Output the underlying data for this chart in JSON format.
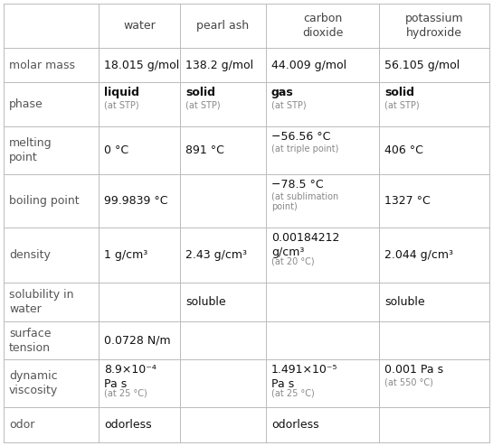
{
  "col_headers": [
    "",
    "water",
    "pearl ash",
    "carbon\ndioxide",
    "potassium\nhydroxide"
  ],
  "rows": [
    {
      "label": "molar mass",
      "cells": [
        [
          [
            "18.015 g/mol",
            9,
            "normal",
            "#111111"
          ],
          [
            "",
            0,
            "normal",
            "#888888"
          ]
        ],
        [
          [
            "138.2 g/mol",
            9,
            "normal",
            "#111111"
          ],
          [
            "",
            0,
            "normal",
            "#888888"
          ]
        ],
        [
          [
            "44.009 g/mol",
            9,
            "normal",
            "#111111"
          ],
          [
            "",
            0,
            "normal",
            "#888888"
          ]
        ],
        [
          [
            "56.105 g/mol",
            9,
            "normal",
            "#111111"
          ],
          [
            "",
            0,
            "normal",
            "#888888"
          ]
        ]
      ]
    },
    {
      "label": "phase",
      "cells": [
        [
          [
            "liquid",
            9,
            "bold",
            "#111111"
          ],
          [
            "(at STP)",
            7,
            "normal",
            "#888888"
          ]
        ],
        [
          [
            "solid",
            9,
            "bold",
            "#111111"
          ],
          [
            "(at STP)",
            7,
            "normal",
            "#888888"
          ]
        ],
        [
          [
            "gas",
            9,
            "bold",
            "#111111"
          ],
          [
            "(at STP)",
            7,
            "normal",
            "#888888"
          ]
        ],
        [
          [
            "solid",
            9,
            "bold",
            "#111111"
          ],
          [
            "(at STP)",
            7,
            "normal",
            "#888888"
          ]
        ]
      ]
    },
    {
      "label": "melting\npoint",
      "cells": [
        [
          [
            "0 °C",
            9,
            "normal",
            "#111111"
          ],
          [
            "",
            0,
            "normal",
            "#888888"
          ]
        ],
        [
          [
            "891 °C",
            9,
            "normal",
            "#111111"
          ],
          [
            "",
            0,
            "normal",
            "#888888"
          ]
        ],
        [
          [
            "−56.56 °C",
            9,
            "normal",
            "#111111"
          ],
          [
            "(at triple point)",
            7,
            "normal",
            "#888888"
          ]
        ],
        [
          [
            "406 °C",
            9,
            "normal",
            "#111111"
          ],
          [
            "",
            0,
            "normal",
            "#888888"
          ]
        ]
      ]
    },
    {
      "label": "boiling point",
      "cells": [
        [
          [
            "99.9839 °C",
            9,
            "normal",
            "#111111"
          ],
          [
            "",
            0,
            "normal",
            "#888888"
          ]
        ],
        [
          [
            "",
            9,
            "normal",
            "#111111"
          ],
          [
            "",
            0,
            "normal",
            "#888888"
          ]
        ],
        [
          [
            "−78.5 °C",
            9,
            "normal",
            "#111111"
          ],
          [
            "(at sublimation\npoint)",
            7,
            "normal",
            "#888888"
          ]
        ],
        [
          [
            "1327 °C",
            9,
            "normal",
            "#111111"
          ],
          [
            "",
            0,
            "normal",
            "#888888"
          ]
        ]
      ]
    },
    {
      "label": "density",
      "cells": [
        [
          [
            "1 g/cm³",
            9,
            "normal",
            "#111111"
          ],
          [
            "",
            0,
            "normal",
            "#888888"
          ]
        ],
        [
          [
            "2.43 g/cm³",
            9,
            "normal",
            "#111111"
          ],
          [
            "",
            0,
            "normal",
            "#888888"
          ]
        ],
        [
          [
            "0.00184212\ng/cm³",
            9,
            "normal",
            "#111111"
          ],
          [
            "(at 20 °C)",
            7,
            "normal",
            "#888888"
          ]
        ],
        [
          [
            "2.044 g/cm³",
            9,
            "normal",
            "#111111"
          ],
          [
            "",
            0,
            "normal",
            "#888888"
          ]
        ]
      ]
    },
    {
      "label": "solubility in\nwater",
      "cells": [
        [
          [
            "",
            9,
            "normal",
            "#111111"
          ],
          [
            "",
            0,
            "normal",
            "#888888"
          ]
        ],
        [
          [
            "soluble",
            9,
            "normal",
            "#111111"
          ],
          [
            "",
            0,
            "normal",
            "#888888"
          ]
        ],
        [
          [
            "",
            9,
            "normal",
            "#111111"
          ],
          [
            "",
            0,
            "normal",
            "#888888"
          ]
        ],
        [
          [
            "soluble",
            9,
            "normal",
            "#111111"
          ],
          [
            "",
            0,
            "normal",
            "#888888"
          ]
        ]
      ]
    },
    {
      "label": "surface\ntension",
      "cells": [
        [
          [
            "0.0728 N/m",
            9,
            "normal",
            "#111111"
          ],
          [
            "",
            0,
            "normal",
            "#888888"
          ]
        ],
        [
          [
            "",
            9,
            "normal",
            "#111111"
          ],
          [
            "",
            0,
            "normal",
            "#888888"
          ]
        ],
        [
          [
            "",
            9,
            "normal",
            "#111111"
          ],
          [
            "",
            0,
            "normal",
            "#888888"
          ]
        ],
        [
          [
            "",
            9,
            "normal",
            "#111111"
          ],
          [
            "",
            0,
            "normal",
            "#888888"
          ]
        ]
      ]
    },
    {
      "label": "dynamic\nviscosity",
      "cells": [
        [
          [
            "8.9×10⁻⁴\nPa s",
            9,
            "normal",
            "#111111"
          ],
          [
            "(at 25 °C)",
            7,
            "normal",
            "#888888"
          ]
        ],
        [
          [
            "",
            9,
            "normal",
            "#111111"
          ],
          [
            "",
            0,
            "normal",
            "#888888"
          ]
        ],
        [
          [
            "1.491×10⁻⁵\nPa s",
            9,
            "normal",
            "#111111"
          ],
          [
            "(at 25 °C)",
            7,
            "normal",
            "#888888"
          ]
        ],
        [
          [
            "0.001 Pa s",
            9,
            "normal",
            "#111111"
          ],
          [
            "(at 550 °C)",
            7,
            "normal",
            "#888888"
          ]
        ]
      ]
    },
    {
      "label": "odor",
      "cells": [
        [
          [
            "odorless",
            9,
            "normal",
            "#111111"
          ],
          [
            "",
            0,
            "normal",
            "#888888"
          ]
        ],
        [
          [
            "",
            9,
            "normal",
            "#111111"
          ],
          [
            "",
            0,
            "normal",
            "#888888"
          ]
        ],
        [
          [
            "odorless",
            9,
            "normal",
            "#111111"
          ],
          [
            "",
            0,
            "normal",
            "#888888"
          ]
        ],
        [
          [
            "",
            9,
            "normal",
            "#111111"
          ],
          [
            "",
            0,
            "normal",
            "#888888"
          ]
        ]
      ]
    }
  ],
  "bg_color": "#ffffff",
  "line_color": "#bbbbbb",
  "label_color": "#555555",
  "header_color": "#444444",
  "fig_width": 5.45,
  "fig_height": 4.94,
  "dpi": 100
}
